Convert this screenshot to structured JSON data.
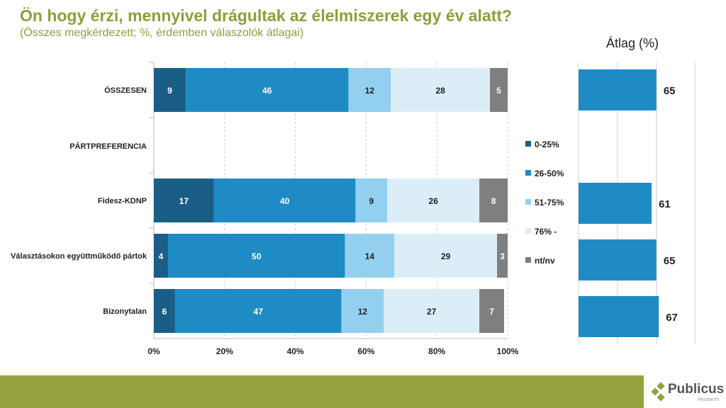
{
  "header": {
    "title": "Ön hogy érzi, mennyivel drágultak az élelmiszerek egy év alatt?",
    "subtitle": "(Összes megkérdezett; %, érdemben válaszolók átlagai)"
  },
  "chart_data": [
    {
      "type": "bar",
      "stacked": true,
      "orientation": "horizontal",
      "categories": [
        "ÖSSZESEN",
        "PÁRTPREFERENCIA",
        "Fidesz-KDNP",
        "Választásokon együttműködő pártok",
        "Bizonytalan"
      ],
      "series": [
        {
          "name": "0-25%",
          "color": "#1a5e86",
          "values": [
            9,
            null,
            17,
            4,
            6
          ]
        },
        {
          "name": "26-50%",
          "color": "#1f8bc5",
          "values": [
            46,
            null,
            40,
            50,
            47
          ]
        },
        {
          "name": "51-75%",
          "color": "#93d0ef",
          "values": [
            12,
            null,
            9,
            14,
            12
          ]
        },
        {
          "name": "76% -",
          "color": "#dbeef8",
          "values": [
            28,
            null,
            26,
            29,
            27
          ]
        },
        {
          "name": "nt/nv",
          "color": "#7f7f7f",
          "values": [
            5,
            null,
            8,
            3,
            7
          ]
        }
      ],
      "xticks": [
        "0%",
        "20%",
        "40%",
        "60%",
        "80%",
        "100%"
      ],
      "xlim": [
        0,
        100
      ],
      "grid": true,
      "legend": "right"
    },
    {
      "type": "bar",
      "orientation": "horizontal",
      "title": "Átlag (%)",
      "categories": [
        "ÖSSZESEN",
        "PÁRTPREFERENCIA",
        "Fidesz-KDNP",
        "Választásokon együttműködő pártok",
        "Bizonytalan"
      ],
      "values": [
        65,
        null,
        61,
        65,
        67
      ],
      "color": "#1f8bc5",
      "xlim": [
        0,
        100
      ]
    }
  ],
  "footer": {
    "logo": "Publicus",
    "logo_sub": "Research"
  }
}
